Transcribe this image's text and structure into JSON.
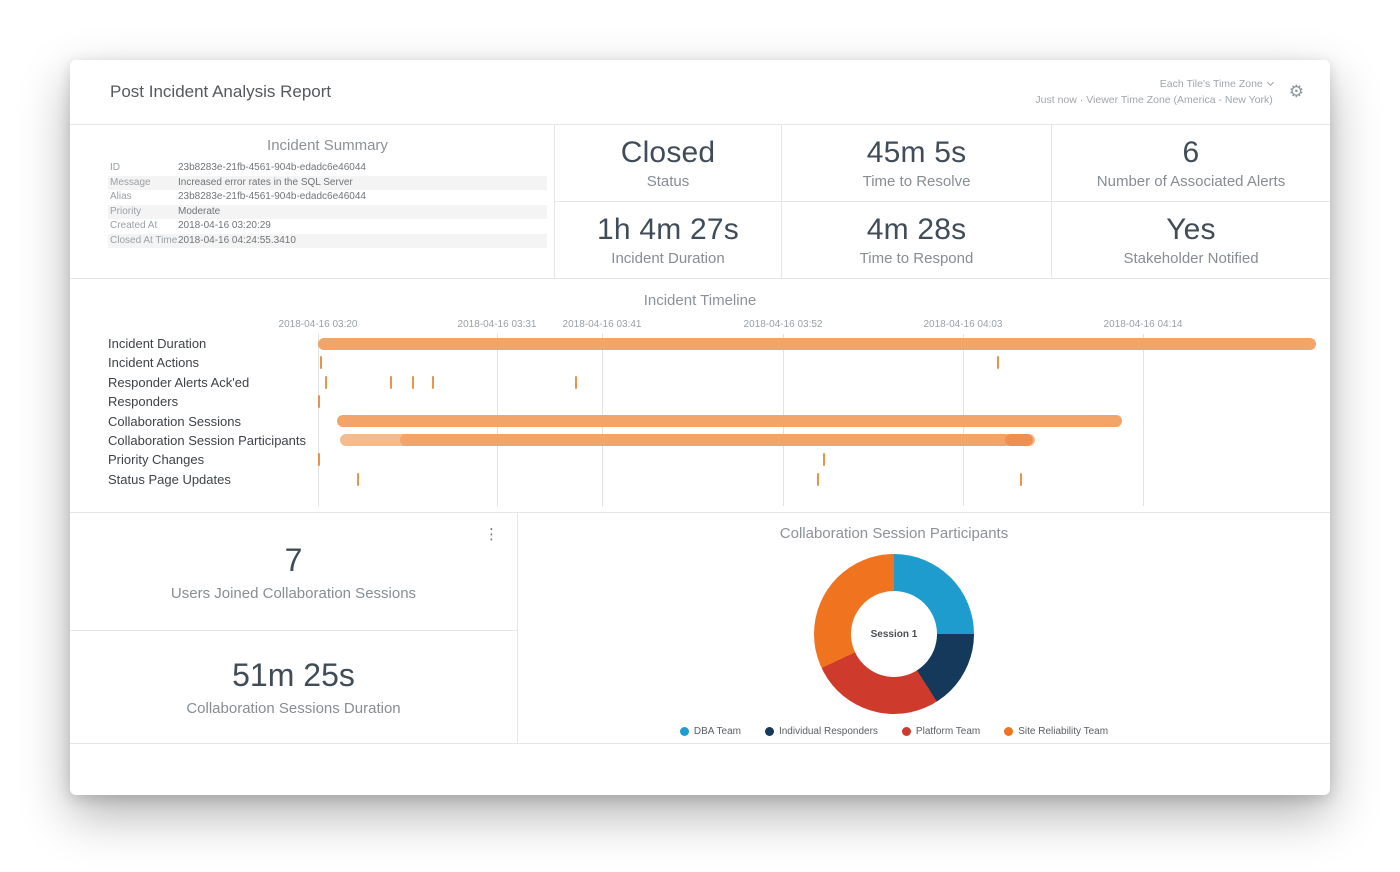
{
  "header": {
    "title": "Post Incident Analysis Report",
    "tile_timezone_label": "Each Tile's Time Zone",
    "updated_text": "Just now",
    "dot_separator": "·",
    "viewer_timezone_label": "Viewer Time Zone (America - New York)"
  },
  "incident_summary": {
    "title": "Incident Summary",
    "rows": [
      {
        "label": "ID",
        "value": "23b8283e-21fb-4561-904b-edadc6e46044"
      },
      {
        "label": "Message",
        "value": "Increased error rates in the SQL Server"
      },
      {
        "label": "Alias",
        "value": "23b8283e-21fb-4561-904b-edadc6e46044"
      },
      {
        "label": "Priority",
        "value": "Moderate"
      },
      {
        "label": "Created At Time",
        "value": "2018-04-16 03:20:29"
      },
      {
        "label": "Closed At Time",
        "value": "2018-04-16 04:24:55.3410"
      }
    ]
  },
  "kpis": [
    {
      "value": "Closed",
      "label": "Status"
    },
    {
      "value": "45m 5s",
      "label": "Time to Resolve"
    },
    {
      "value": "6",
      "label": "Number of Associated Alerts"
    },
    {
      "value": "1h 4m 27s",
      "label": "Incident Duration"
    },
    {
      "value": "4m 28s",
      "label": "Time to Respond"
    },
    {
      "value": "Yes",
      "label": "Stakeholder Notified"
    }
  ],
  "timeline": {
    "title": "Incident Timeline",
    "axis_labels": [
      "2018-04-16 03:20",
      "2018-04-16 03:31",
      "2018-04-16 03:41",
      "2018-04-16 03:52",
      "2018-04-16 04:03",
      "2018-04-16 04:14"
    ],
    "axis_pct": [
      0.2,
      18.1,
      28.6,
      46.7,
      64.7,
      82.7
    ],
    "bar_color": "#F3A469",
    "tick_color": "#ED9249",
    "rows": [
      {
        "label": "Incident Duration",
        "bars": [
          {
            "start": 0.2,
            "end": 100
          }
        ],
        "ticks": []
      },
      {
        "label": "Incident Actions",
        "bars": [],
        "ticks": [
          0.4,
          68.1
        ]
      },
      {
        "label": "Responder Alerts Ack'ed",
        "bars": [],
        "ticks": [
          0.9,
          7.4,
          9.6,
          11.6,
          25.9
        ]
      },
      {
        "label": "Responders",
        "bars": [],
        "ticks": [
          0.2
        ]
      },
      {
        "label": "Collaboration Sessions",
        "bars": [
          {
            "start": 2.1,
            "end": 80.6
          }
        ],
        "ticks": []
      },
      {
        "label": "Collaboration Session Participants",
        "bars": [
          {
            "start": 2.4,
            "end": 71.9,
            "color": "#F6BB8D"
          },
          {
            "start": 8.4,
            "end": 69.4,
            "color": "#F3A468"
          },
          {
            "start": 68.9,
            "end": 71.7,
            "color": "#EE9050"
          }
        ],
        "ticks": []
      },
      {
        "label": "Priority Changes",
        "bars": [],
        "ticks": [
          0.2,
          50.7
        ]
      },
      {
        "label": "Status Page Updates",
        "bars": [],
        "ticks": [
          4.1,
          50.1,
          70.4
        ]
      }
    ]
  },
  "stats": [
    {
      "value": "7",
      "label": "Users Joined Collaboration Sessions"
    },
    {
      "value": "51m 25s",
      "label": "Collaboration Sessions Duration"
    }
  ],
  "participants_chart": {
    "title": "Collaboration Session Participants",
    "center_label": "Session 1",
    "segments": [
      {
        "name": "DBA Team",
        "color": "#1E9CCD",
        "value": 25
      },
      {
        "name": "Individual Responders",
        "color": "#14395B",
        "value": 16
      },
      {
        "name": "Platform Team",
        "color": "#CE3A2B",
        "value": 27
      },
      {
        "name": "Site Reliability Team",
        "color": "#F0731F",
        "value": 32
      }
    ]
  }
}
